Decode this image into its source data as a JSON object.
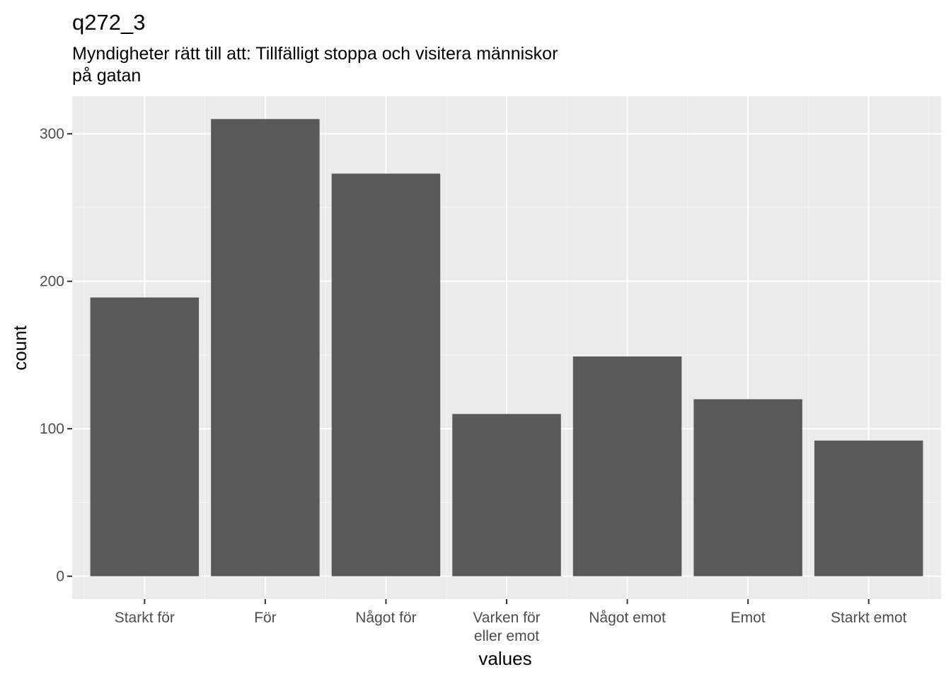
{
  "chart_data": {
    "type": "bar",
    "title": "q272_3",
    "subtitle_lines": [
      "Myndigheter rätt till att: Tillfälligt stoppa och visitera människor",
      "på gatan"
    ],
    "xlabel": "values",
    "ylabel": "count",
    "categories": [
      "Starkt för",
      "För",
      "Något för",
      "Varken för eller emot",
      "Något emot",
      "Emot",
      "Starkt emot"
    ],
    "category_label_lines": [
      [
        "Starkt för"
      ],
      [
        "För"
      ],
      [
        "Något för"
      ],
      [
        "Varken för",
        "eller emot"
      ],
      [
        "Något emot"
      ],
      [
        "Emot"
      ],
      [
        "Starkt emot"
      ]
    ],
    "values": [
      189,
      310,
      273,
      110,
      149,
      120,
      92
    ],
    "yticks": [
      0,
      100,
      200,
      300
    ],
    "ytick_labels": [
      "0",
      "100",
      "200",
      "300"
    ],
    "ylim": [
      -15.5,
      325.5
    ],
    "grid": true,
    "colors": {
      "bar": "#595959",
      "panel": "#EBEBEB",
      "grid_major": "#FFFFFF",
      "grid_minor": "#F5F5F5",
      "tick": "#333333",
      "tick_label": "#4D4D4D"
    }
  }
}
